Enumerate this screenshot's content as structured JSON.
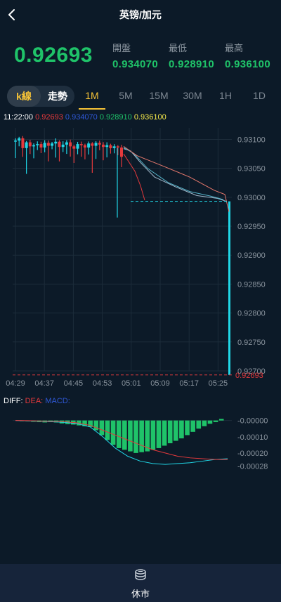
{
  "header": {
    "title": "英镑/加元"
  },
  "quote": {
    "price": "0.92693",
    "open_label": "開盤",
    "open": "0.934070",
    "low_label": "最低",
    "low": "0.928910",
    "high_label": "最高",
    "high": "0.936100"
  },
  "tabs": {
    "kline": "k線",
    "trend": "走勢",
    "intervals": [
      "1M",
      "5M",
      "15M",
      "30M",
      "1H",
      "1D"
    ],
    "selected": "1M"
  },
  "info": {
    "time": "11:22:00",
    "v1": "0.92693",
    "v2": "0.934070",
    "v3": "0.928910",
    "v4": "0.936100"
  },
  "chart_data": [
    {
      "type": "candlestick",
      "x_ticks": [
        "04:29",
        "04:37",
        "04:45",
        "04:53",
        "05:01",
        "05:09",
        "05:17",
        "05:25"
      ],
      "y_ticks": [
        "0.93100",
        "0.93050",
        "0.93000",
        "0.92950",
        "0.92900",
        "0.92850",
        "0.92800",
        "0.92750",
        "0.92700"
      ],
      "ylim": [
        0.927,
        0.9312
      ],
      "last_price_label": "0.92693",
      "series": [
        {
          "name": "close",
          "values": [
            0.93098,
            0.93102,
            0.93085,
            0.93095,
            0.93088,
            0.9309,
            0.93092,
            0.93086,
            0.93094,
            0.93089,
            0.93093,
            0.93096,
            0.93087,
            0.93091,
            0.93095,
            0.93088,
            0.93084,
            0.93092,
            0.9309,
            0.93086,
            0.93093,
            0.93089,
            0.93094,
            0.93091,
            0.93087,
            0.9309,
            0.93085,
            0.93088,
            0.93086,
            0.9307,
            0.93083,
            0.9307,
            0.9305,
            0.9302,
            0.92995,
            0.92995,
            0.92995,
            0.92995,
            0.92995,
            0.92995,
            0.92995,
            0.92995,
            0.92995,
            0.92995,
            0.92995,
            0.92995,
            0.92995,
            0.92995,
            0.92995,
            0.92995,
            0.92995,
            0.92995,
            0.92995,
            0.92995,
            0.92995,
            0.92995,
            0.92993,
            0.92693
          ]
        }
      ]
    },
    {
      "type": "bar",
      "title": "",
      "legend": [
        "DIFF:",
        "DEA:",
        "MACD:"
      ],
      "y_ticks": [
        "-0.00000",
        "-0.00010",
        "-0.00020",
        "-0.00028"
      ],
      "ylim": [
        -0.0003,
        2e-05
      ],
      "series": [
        {
          "name": "MACD",
          "values": [
            0.0,
            -5e-06,
            -8e-06,
            -1e-05,
            -1.2e-05,
            -1e-05,
            -1.2e-05,
            -1.8e-05,
            -2.2e-05,
            -2.5e-05,
            -3e-05,
            -3.5e-05,
            -4e-05,
            -6e-05,
            -9e-05,
            -0.00012,
            -0.00015,
            -0.00017,
            -0.00018,
            -0.00019,
            -0.0002,
            -0.000195,
            -0.00019,
            -0.00018,
            -0.00017,
            -0.000155,
            -0.00014,
            -0.000125,
            -0.00011,
            -9e-05,
            -7e-05,
            -5e-05,
            -3.5e-05,
            -2e-05,
            -1e-05,
            1e-05
          ]
        },
        {
          "name": "DIFF",
          "values": [
            0.0,
            -2e-06,
            -5e-06,
            -8e-06,
            -1.2e-05,
            -2e-05,
            -4e-05,
            -0.0001,
            -0.00017,
            -0.00022,
            -0.00025,
            -0.000265,
            -0.00027,
            -0.000265,
            -0.00026,
            -0.00025,
            -0.00024,
            -0.000235
          ]
        },
        {
          "name": "DEA",
          "values": [
            0.0,
            -1e-06,
            -3e-06,
            -5e-06,
            -8e-06,
            -1.5e-05,
            -3e-05,
            -6e-05,
            -9e-05,
            -0.00012,
            -0.00015,
            -0.00018,
            -0.0002,
            -0.00022,
            -0.00023,
            -0.000235,
            -0.00024,
            -0.00024
          ]
        }
      ]
    }
  ],
  "bottom": {
    "label": "休市"
  },
  "colors": {
    "up": "#1fc369",
    "down": "#e5393c",
    "accent": "#f5c237",
    "cyan": "#20d6e6"
  }
}
